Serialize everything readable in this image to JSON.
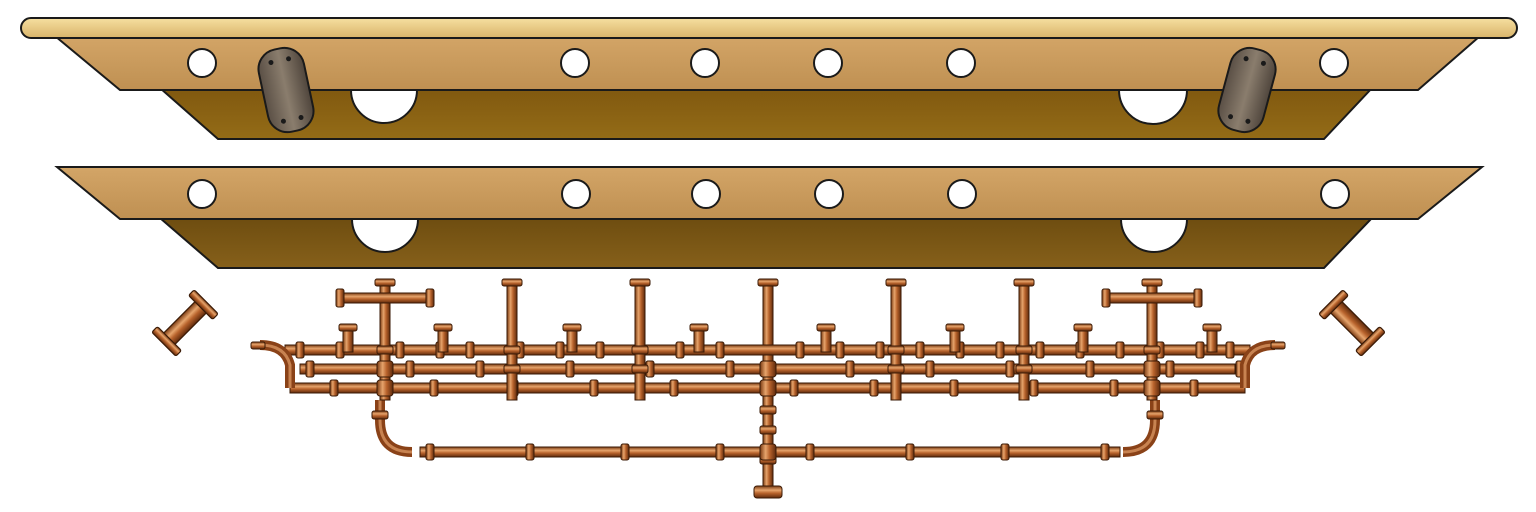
{
  "sprite_sheet": {
    "parts": [
      {
        "name": "top-plank-with-brackets"
      },
      {
        "name": "plank-panel"
      },
      {
        "name": "copper-pipe-manifold"
      },
      {
        "name": "pipe-joint-left"
      },
      {
        "name": "pipe-joint-right"
      }
    ]
  },
  "colors": {
    "rim": "#e9c97e",
    "plank_face": "#c99b5c",
    "plank_dark": "#8a6413",
    "outline": "#1a1a1a",
    "bracket": "#6b5f52",
    "copper": "#b8632c",
    "copper_light": "#e3a06a",
    "copper_dark": "#6e3210"
  }
}
